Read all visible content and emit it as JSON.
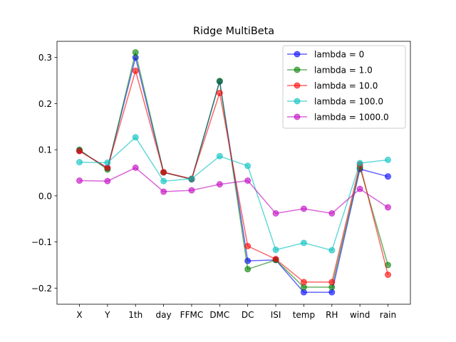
{
  "chart_data": {
    "type": "line",
    "title": "Ridge MultiBeta",
    "xlabel": "",
    "ylabel": "",
    "categories": [
      "X",
      "Y",
      "1th",
      "day",
      "FFMC",
      "DMC",
      "DC",
      "ISI",
      "temp",
      "RH",
      "wind",
      "rain"
    ],
    "ylim": [
      -0.235,
      0.335
    ],
    "yticks": [
      -0.2,
      -0.1,
      0.0,
      0.1,
      0.2,
      0.3
    ],
    "ytick_labels": [
      "−0.2",
      "−0.1",
      "0.0",
      "0.1",
      "0.2",
      "0.3"
    ],
    "grid": false,
    "legend_position": "top-right",
    "series": [
      {
        "name": "lambda = 0",
        "color": "#0000ff",
        "values": [
          0.098,
          0.06,
          0.3,
          0.051,
          0.036,
          0.248,
          -0.141,
          -0.139,
          -0.209,
          -0.209,
          0.058,
          0.042
        ]
      },
      {
        "name": "lambda = 1.0",
        "color": "#008000",
        "values": [
          0.1,
          0.057,
          0.311,
          0.051,
          0.036,
          0.249,
          -0.159,
          -0.139,
          -0.198,
          -0.198,
          0.062,
          -0.15
        ]
      },
      {
        "name": "lambda = 10.0",
        "color": "#ff0000",
        "values": [
          0.097,
          0.061,
          0.271,
          0.051,
          0.037,
          0.223,
          -0.109,
          -0.137,
          -0.187,
          -0.187,
          0.068,
          -0.171
        ]
      },
      {
        "name": "lambda = 100.0",
        "color": "#00bfbf",
        "values": [
          0.073,
          0.072,
          0.127,
          0.032,
          0.037,
          0.086,
          0.065,
          -0.117,
          -0.102,
          -0.118,
          0.071,
          0.078
        ]
      },
      {
        "name": "lambda = 1000.0",
        "color": "#bf00bf",
        "values": [
          0.033,
          0.032,
          0.061,
          0.009,
          0.012,
          0.025,
          0.033,
          -0.038,
          -0.028,
          -0.038,
          0.015,
          -0.025
        ]
      }
    ]
  }
}
